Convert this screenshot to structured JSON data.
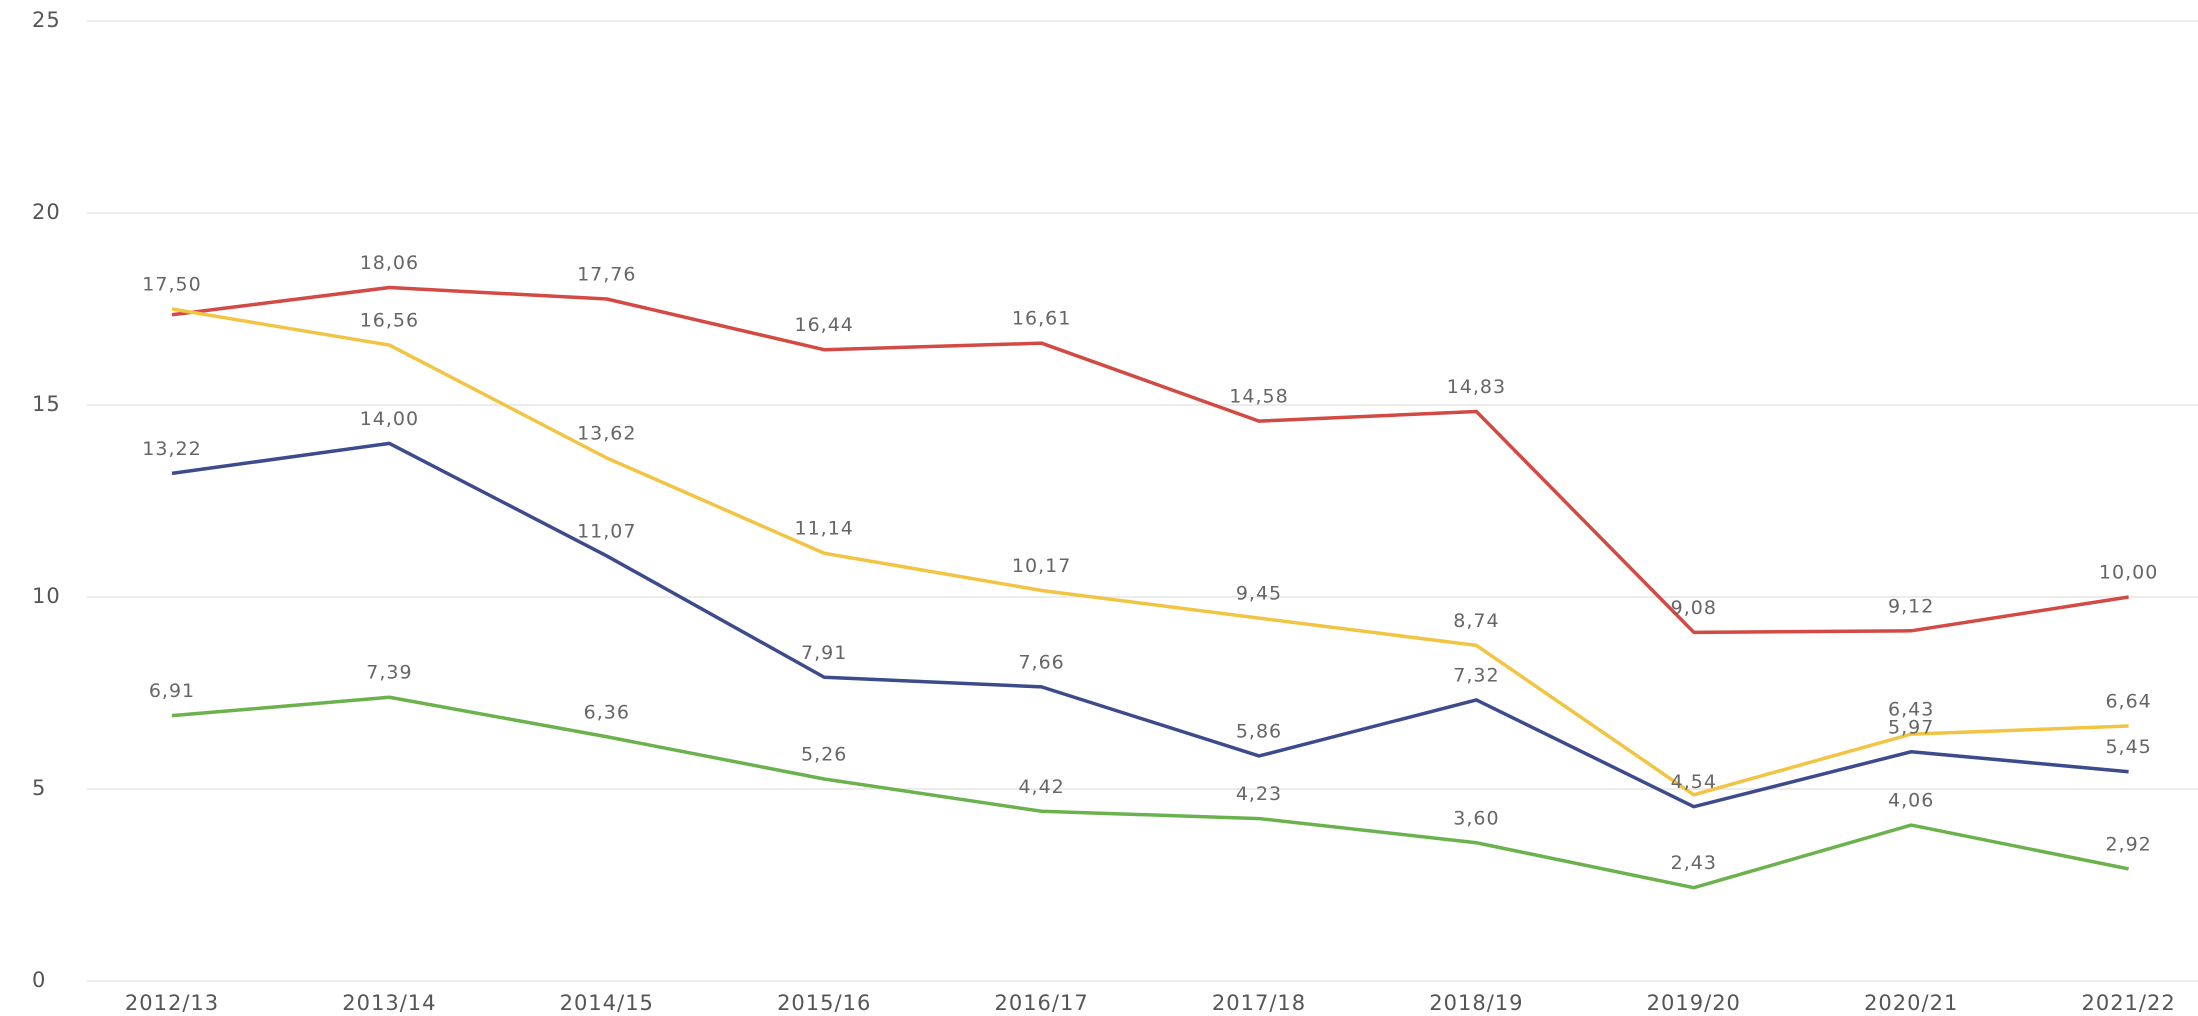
{
  "chart_data": {
    "type": "line",
    "categories": [
      "2012/13",
      "2013/14",
      "2014/15",
      "2015/16",
      "2016/17",
      "2017/18",
      "2018/19",
      "2019/20",
      "2020/21",
      "2021/22"
    ],
    "ylim": [
      0,
      25
    ],
    "yticks": [
      0,
      5,
      10,
      15,
      20,
      25
    ],
    "grid": true,
    "series": [
      {
        "color": "#d24a43",
        "values": [
          17.35,
          18.06,
          17.76,
          16.44,
          16.61,
          14.58,
          14.83,
          9.08,
          9.12,
          10.0
        ],
        "value_labels": [
          null,
          "18,06",
          "17,76",
          "16,44",
          "16,61",
          "14,58",
          "14,83",
          "9,08",
          "9,12",
          "10,00"
        ]
      },
      {
        "color": "#f2c443",
        "values": [
          17.5,
          16.56,
          13.62,
          11.14,
          10.17,
          9.45,
          8.74,
          4.85,
          6.43,
          6.64
        ],
        "value_labels": [
          "17,50",
          "16,56",
          "13,62",
          "11,14",
          "10,17",
          "9,45",
          "8,74",
          null,
          "6,43",
          "6,64"
        ]
      },
      {
        "color": "#3d4b8c",
        "values": [
          13.22,
          14.0,
          11.07,
          7.91,
          7.66,
          5.86,
          7.32,
          4.54,
          5.97,
          5.45
        ],
        "value_labels": [
          "13,22",
          "14,00",
          "11,07",
          "7,91",
          "7,66",
          "5,86",
          "7,32",
          "4,54",
          "5,97",
          "5,45"
        ]
      },
      {
        "color": "#6bb24e",
        "values": [
          6.91,
          7.39,
          6.36,
          5.26,
          4.42,
          4.23,
          3.6,
          2.43,
          4.06,
          2.92
        ],
        "value_labels": [
          "6,91",
          "7,39",
          "6,36",
          "5,26",
          "4,42",
          "4,23",
          "3,60",
          "2,43",
          "4,06",
          "2,92"
        ]
      }
    ]
  }
}
